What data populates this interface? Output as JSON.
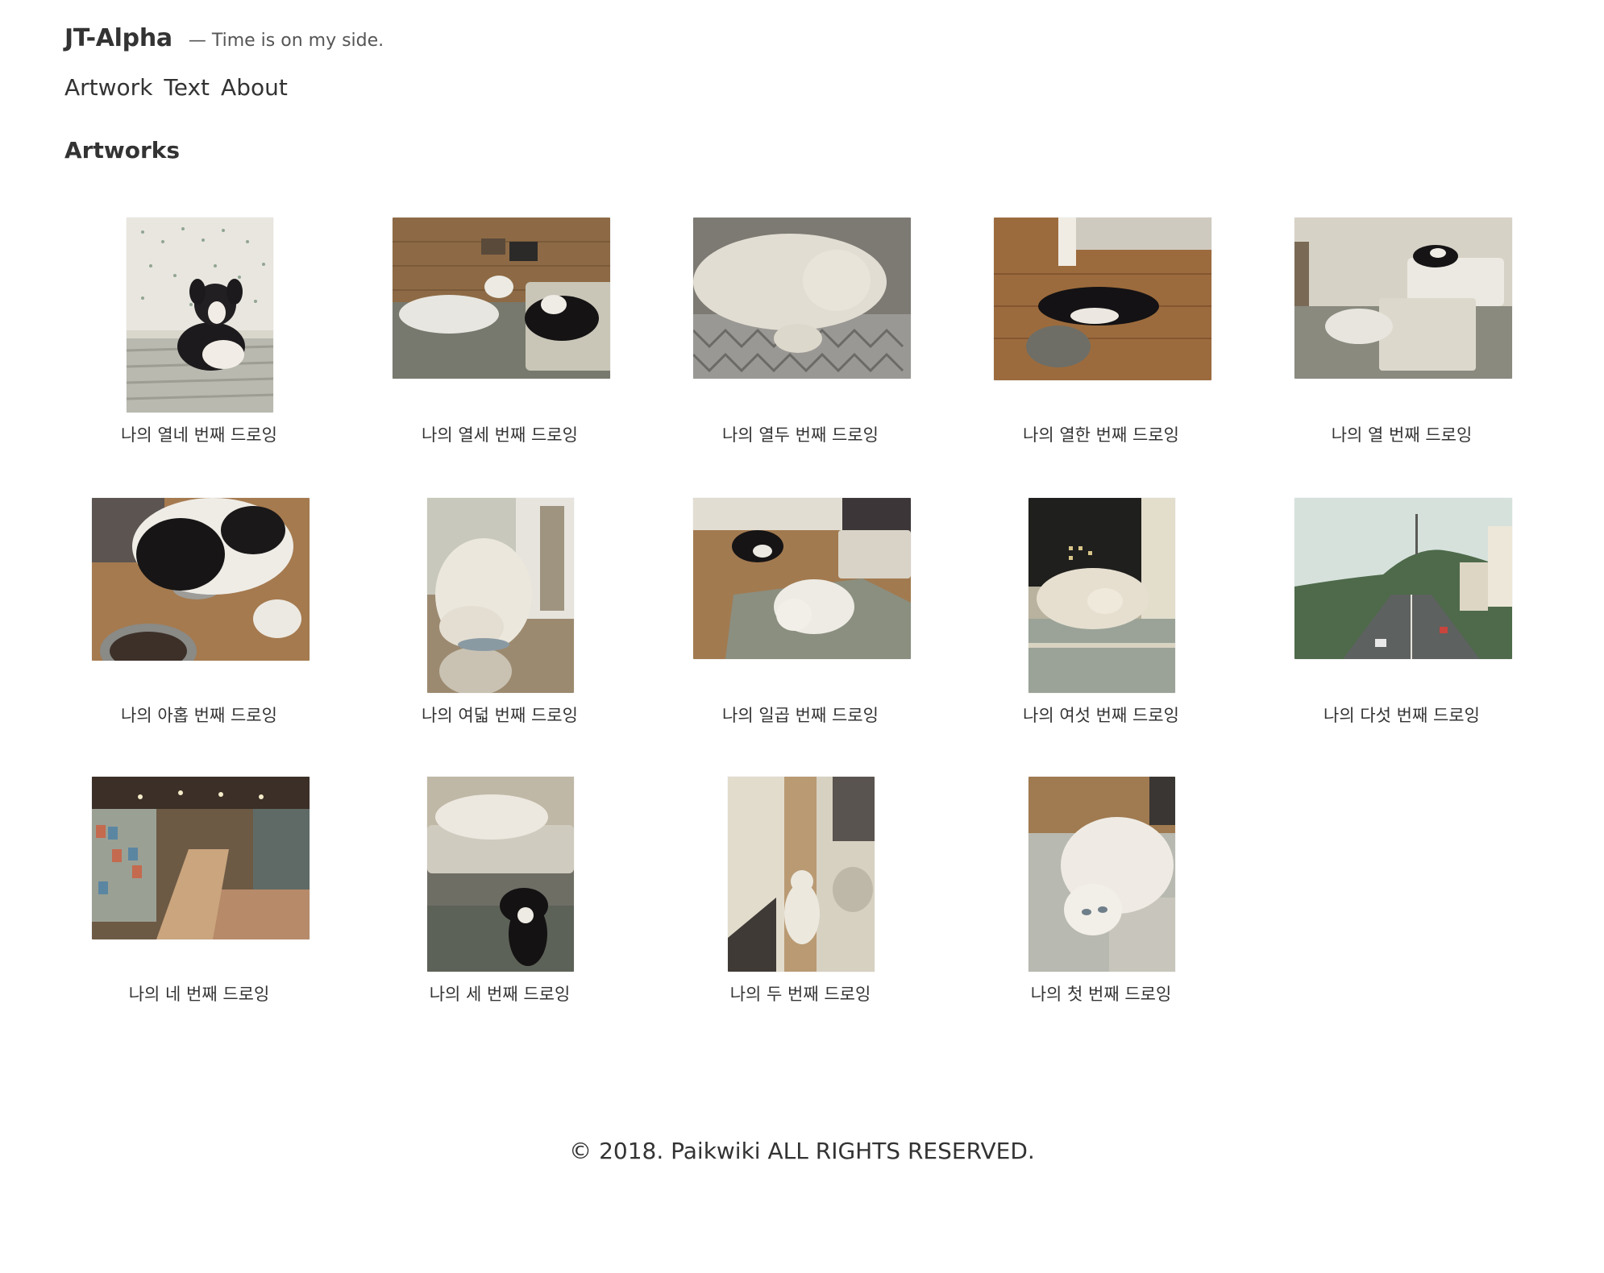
{
  "header": {
    "site_title": "JT-Alpha",
    "tagline": "— Time is on my side."
  },
  "nav": {
    "items": [
      "Artwork",
      "Text",
      "About"
    ]
  },
  "section": {
    "title": "Artworks"
  },
  "gallery": {
    "items": [
      {
        "caption": "나의 열네 번째 드로잉",
        "subject": "dog on cushion"
      },
      {
        "caption": "나의 열세 번째 드로잉",
        "subject": "cat and dog on floor"
      },
      {
        "caption": "나의 열두 번째 드로잉",
        "subject": "white cat resting"
      },
      {
        "caption": "나의 열한 번째 드로잉",
        "subject": "dog on wooden floor"
      },
      {
        "caption": "나의 열 번째 드로잉",
        "subject": "cat and dog in room"
      },
      {
        "caption": "나의 아홉 번째 드로잉",
        "subject": "dog eating"
      },
      {
        "caption": "나의 여덟 번째 드로잉",
        "subject": "cat at window"
      },
      {
        "caption": "나의 일곱 번째 드로잉",
        "subject": "cat and dog on rug"
      },
      {
        "caption": "나의 여섯 번째 드로잉",
        "subject": "cat by window at night"
      },
      {
        "caption": "나의 다섯 번째 드로잉",
        "subject": "city street view"
      },
      {
        "caption": "나의 네 번째 드로잉",
        "subject": "bookstore interior"
      },
      {
        "caption": "나의 세 번째 드로잉",
        "subject": "cat on bench with dog"
      },
      {
        "caption": "나의 두 번째 드로잉",
        "subject": "cat in hallway"
      },
      {
        "caption": "나의 첫 번째 드로잉",
        "subject": "cat lying on floor"
      }
    ]
  },
  "footer": {
    "copyright": "© 2018. Paikwiki ALL RIGHTS RESERVED."
  },
  "colors": {
    "text": "#333333",
    "background": "#ffffff"
  }
}
